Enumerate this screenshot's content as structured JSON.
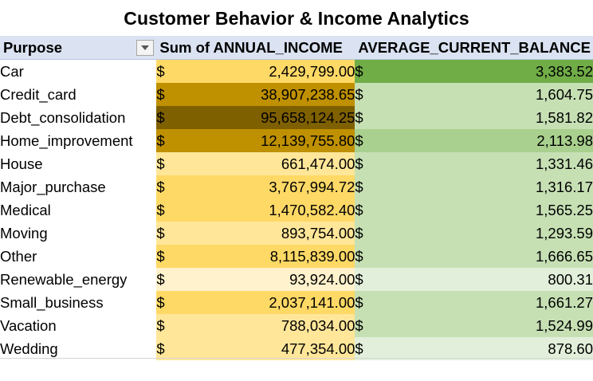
{
  "title": "Customer Behavior & Income Analytics",
  "headers": {
    "purpose": "Purpose",
    "income": "Sum of ANNUAL_INCOME",
    "balance": "AVERAGE_CURRENT_BALANCE"
  },
  "currency_symbol": "$",
  "rows": [
    {
      "purpose": "Car",
      "income": "2,429,799.00",
      "balance": "3,383.52",
      "income_color": "#ffd966",
      "balance_color": "#70ad47"
    },
    {
      "purpose": "Credit_card",
      "income": "38,907,238.65",
      "balance": "1,604.75",
      "income_color": "#bf9000",
      "balance_color": "#c6e0b4"
    },
    {
      "purpose": "Debt_consolidation",
      "income": "95,658,124.25",
      "balance": "1,581.82",
      "income_color": "#7f6000",
      "balance_color": "#c6e0b4"
    },
    {
      "purpose": "Home_improvement",
      "income": "12,139,755.80",
      "balance": "2,113.98",
      "income_color": "#bf9000",
      "balance_color": "#a9d08e"
    },
    {
      "purpose": "House",
      "income": "661,474.00",
      "balance": "1,331.46",
      "income_color": "#ffe699",
      "balance_color": "#c6e0b4"
    },
    {
      "purpose": "Major_purchase",
      "income": "3,767,994.72",
      "balance": "1,316.17",
      "income_color": "#ffd966",
      "balance_color": "#c6e0b4"
    },
    {
      "purpose": "Medical",
      "income": "1,470,582.40",
      "balance": "1,565.25",
      "income_color": "#ffd966",
      "balance_color": "#c6e0b4"
    },
    {
      "purpose": "Moving",
      "income": "893,754.00",
      "balance": "1,293.59",
      "income_color": "#ffe699",
      "balance_color": "#c6e0b4"
    },
    {
      "purpose": "Other",
      "income": "8,115,839.00",
      "balance": "1,666.65",
      "income_color": "#ffd966",
      "balance_color": "#c6e0b4"
    },
    {
      "purpose": "Renewable_energy",
      "income": "93,924.00",
      "balance": "800.31",
      "income_color": "#fff2cc",
      "balance_color": "#e2efda"
    },
    {
      "purpose": "Small_business",
      "income": "2,037,141.00",
      "balance": "1,661.27",
      "income_color": "#ffd966",
      "balance_color": "#c6e0b4"
    },
    {
      "purpose": "Vacation",
      "income": "788,034.00",
      "balance": "1,524.99",
      "income_color": "#ffe699",
      "balance_color": "#c6e0b4"
    },
    {
      "purpose": "Wedding",
      "income": "477,354.00",
      "balance": "878.60",
      "income_color": "#ffe699",
      "balance_color": "#e2efda"
    }
  ]
}
